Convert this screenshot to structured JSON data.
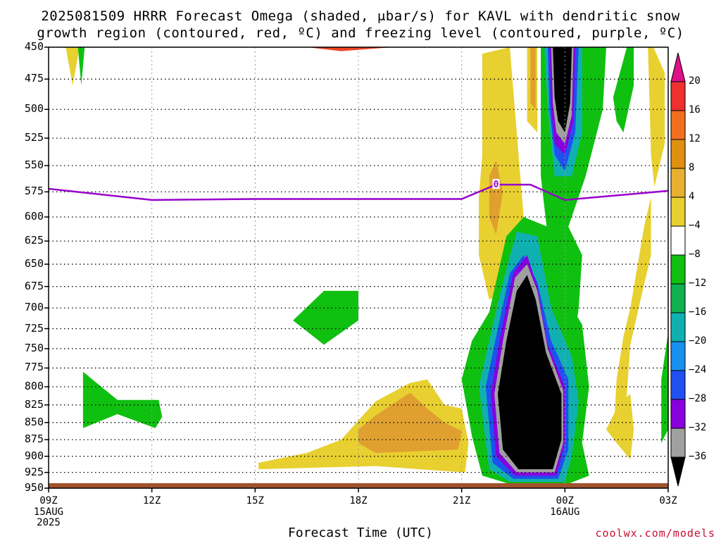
{
  "title_line1": "2025081509 HRRR Forecast Omega (shaded, μbar/s) for KAVL with dendritic snow",
  "title_line2": "growth region (contoured, red, ºC) and freezing level (contoured, purple, ºC)",
  "x_axis_title": "Forecast Time (UTC)",
  "credit": "coolwx.com/models",
  "freezing_label": "0",
  "chart_data": {
    "type": "heatmap",
    "x_ticks": [
      "09Z",
      "12Z",
      "15Z",
      "18Z",
      "21Z",
      "00Z",
      "03Z"
    ],
    "x_tick_hours": [
      9,
      12,
      15,
      18,
      21,
      24,
      27
    ],
    "x_sub_labels": [
      {
        "hour": 9,
        "lines": [
          "15AUG",
          "2025"
        ]
      },
      {
        "hour": 24,
        "lines": [
          "16AUG"
        ]
      }
    ],
    "y_ticks": [
      450,
      475,
      500,
      525,
      550,
      575,
      600,
      625,
      650,
      675,
      700,
      725,
      750,
      775,
      800,
      825,
      850,
      875,
      900,
      925,
      950
    ],
    "ylim": [
      950,
      450
    ],
    "xlim": [
      9,
      27
    ],
    "colorbar": {
      "labels": [
        "20",
        "16",
        "12",
        "8",
        "4",
        "−4",
        "−8",
        "−12",
        "−16",
        "−20",
        "−24",
        "−28",
        "−32",
        "−36"
      ],
      "colors": [
        "#dd1188",
        "#ee3030",
        "#f07020",
        "#e09010",
        "#e8b030",
        "#e8d030",
        "#ffffff",
        "#10c010",
        "#10b050",
        "#10b0b0",
        "#1890f0",
        "#2050f0",
        "#8800dd",
        "#a0a0a0",
        "#000000"
      ]
    },
    "freezing_level": {
      "color": "#9900cc",
      "hours": [
        9,
        12,
        15,
        18,
        21,
        22,
        23,
        24,
        27
      ],
      "pressure": [
        572,
        583,
        582,
        582,
        582,
        568,
        568,
        583,
        574
      ]
    },
    "regions": [
      {
        "name": "omega-4-to-8-left",
        "color": "#e8d030",
        "points": [
          [
            9.5,
            450
          ],
          [
            9.7,
            480
          ],
          [
            9.9,
            450
          ]
        ]
      },
      {
        "name": "omega-dendritic",
        "color": "#ee4422",
        "points": [
          [
            16.5,
            450
          ],
          [
            17.5,
            453
          ],
          [
            19,
            450
          ]
        ]
      },
      {
        "name": "omega-neg4-green-a",
        "color": "#10c010",
        "points": [
          [
            9.85,
            450
          ],
          [
            9.95,
            480
          ],
          [
            10.05,
            450
          ]
        ]
      },
      {
        "name": "omega-neg4-green-b",
        "color": "#10c010",
        "points": [
          [
            16.1,
            715
          ],
          [
            17.0,
            680
          ],
          [
            18.0,
            680
          ],
          [
            18.0,
            715
          ],
          [
            17.0,
            745
          ]
        ]
      },
      {
        "name": "omega-neg4-green-c",
        "color": "#10c010",
        "points": [
          [
            10.0,
            780
          ],
          [
            11.0,
            818
          ],
          [
            12.2,
            818
          ],
          [
            12.3,
            842
          ],
          [
            12.1,
            858
          ],
          [
            11.0,
            838
          ],
          [
            10.0,
            858
          ]
        ]
      },
      {
        "name": "omega-pos4-low",
        "color": "#e8d030",
        "points": [
          [
            15.1,
            910
          ],
          [
            16.5,
            895
          ],
          [
            17.5,
            875
          ],
          [
            18.5,
            820
          ],
          [
            19.5,
            795
          ],
          [
            20.0,
            790
          ],
          [
            20.5,
            825
          ],
          [
            21.0,
            830
          ],
          [
            21.2,
            880
          ],
          [
            21.1,
            925
          ],
          [
            18.5,
            915
          ],
          [
            15.1,
            920
          ]
        ]
      },
      {
        "name": "omega-pos8-low",
        "color": "#e0a030",
        "points": [
          [
            18.0,
            860
          ],
          [
            18.5,
            840
          ],
          [
            19.5,
            808
          ],
          [
            20.0,
            830
          ],
          [
            20.5,
            850
          ],
          [
            21.0,
            862
          ],
          [
            20.9,
            890
          ],
          [
            18.5,
            895
          ],
          [
            18.0,
            880
          ]
        ]
      },
      {
        "name": "omega-pos4-mid",
        "color": "#e8d030",
        "points": [
          [
            21.5,
            580
          ],
          [
            21.6,
            540
          ],
          [
            21.6,
            455
          ],
          [
            22.4,
            450
          ],
          [
            22.6,
            520
          ],
          [
            22.8,
            600
          ],
          [
            23.1,
            620
          ],
          [
            22.6,
            680
          ],
          [
            21.8,
            690
          ],
          [
            21.5,
            640
          ]
        ]
      },
      {
        "name": "omega-pos8-mid",
        "color": "#e0a030",
        "points": [
          [
            21.8,
            560
          ],
          [
            22.0,
            545
          ],
          [
            22.2,
            575
          ],
          [
            22.0,
            618
          ],
          [
            21.8,
            600
          ]
        ]
      },
      {
        "name": "omega-pos4-top",
        "color": "#e8d030",
        "points": [
          [
            22.9,
            450
          ],
          [
            23.2,
            450
          ],
          [
            23.2,
            520
          ],
          [
            22.9,
            510
          ]
        ]
      },
      {
        "name": "omega-pos8-top",
        "color": "#e0a030",
        "points": [
          [
            23.0,
            450
          ],
          [
            23.15,
            450
          ],
          [
            23.15,
            500
          ],
          [
            23.0,
            495
          ]
        ]
      },
      {
        "name": "omega-neg4-upper",
        "color": "#10c010",
        "points": [
          [
            23.3,
            450
          ],
          [
            25.2,
            450
          ],
          [
            25.1,
            500
          ],
          [
            24.6,
            560
          ],
          [
            24.1,
            610
          ],
          [
            24.5,
            640
          ],
          [
            24.4,
            700
          ],
          [
            24.2,
            760
          ],
          [
            23.7,
            680
          ],
          [
            23.5,
            620
          ],
          [
            23.3,
            560
          ],
          [
            23.3,
            500
          ]
        ]
      },
      {
        "name": "omega-neg12-upper",
        "color": "#10b0b0",
        "points": [
          [
            23.4,
            450
          ],
          [
            24.5,
            450
          ],
          [
            24.5,
            520
          ],
          [
            24.2,
            560
          ],
          [
            23.7,
            560
          ],
          [
            23.5,
            500
          ]
        ]
      },
      {
        "name": "omega-neg20-upper",
        "color": "#2050f0",
        "points": [
          [
            23.5,
            450
          ],
          [
            24.4,
            450
          ],
          [
            24.3,
            520
          ],
          [
            24.0,
            555
          ],
          [
            23.7,
            540
          ],
          [
            23.55,
            500
          ]
        ]
      },
      {
        "name": "omega-neg28-upper",
        "color": "#8800dd",
        "points": [
          [
            23.55,
            450
          ],
          [
            24.3,
            450
          ],
          [
            24.25,
            510
          ],
          [
            24.0,
            540
          ],
          [
            23.7,
            530
          ],
          [
            23.6,
            500
          ]
        ]
      },
      {
        "name": "omega-neg32-upper",
        "color": "#a0a0a0",
        "points": [
          [
            23.6,
            450
          ],
          [
            24.25,
            450
          ],
          [
            24.2,
            505
          ],
          [
            24.0,
            530
          ],
          [
            23.75,
            520
          ],
          [
            23.65,
            495
          ]
        ]
      },
      {
        "name": "omega-neg36-upper",
        "color": "#000000",
        "points": [
          [
            23.65,
            450
          ],
          [
            24.2,
            450
          ],
          [
            24.15,
            495
          ],
          [
            24.0,
            520
          ],
          [
            23.8,
            510
          ],
          [
            23.7,
            490
          ]
        ]
      },
      {
        "name": "omega-neg4-right-top",
        "color": "#10c010",
        "points": [
          [
            25.4,
            490
          ],
          [
            25.8,
            450
          ],
          [
            26.0,
            450
          ],
          [
            26.0,
            480
          ],
          [
            25.7,
            520
          ],
          [
            25.5,
            510
          ]
        ]
      },
      {
        "name": "omega-neg4-lower",
        "color": "#10c010",
        "points": [
          [
            21.0,
            790
          ],
          [
            21.3,
            740
          ],
          [
            21.8,
            705
          ],
          [
            22.3,
            620
          ],
          [
            22.8,
            600
          ],
          [
            23.5,
            610
          ],
          [
            23.9,
            680
          ],
          [
            24.5,
            720
          ],
          [
            24.7,
            800
          ],
          [
            24.5,
            880
          ],
          [
            24.7,
            930
          ],
          [
            24.0,
            945
          ],
          [
            22.5,
            945
          ],
          [
            21.6,
            930
          ],
          [
            21.3,
            870
          ]
        ]
      },
      {
        "name": "omega-neg12-lower",
        "color": "#10b0b0",
        "points": [
          [
            21.5,
            800
          ],
          [
            21.8,
            740
          ],
          [
            22.2,
            670
          ],
          [
            22.6,
            615
          ],
          [
            23.2,
            620
          ],
          [
            23.6,
            700
          ],
          [
            24.2,
            760
          ],
          [
            24.4,
            820
          ],
          [
            24.2,
            900
          ],
          [
            24.0,
            940
          ],
          [
            22.4,
            940
          ],
          [
            21.8,
            920
          ]
        ]
      },
      {
        "name": "omega-neg20-lower",
        "color": "#2050f0",
        "points": [
          [
            21.7,
            800
          ],
          [
            22.0,
            735
          ],
          [
            22.4,
            660
          ],
          [
            22.8,
            640
          ],
          [
            23.2,
            670
          ],
          [
            23.6,
            740
          ],
          [
            24.1,
            790
          ],
          [
            24.1,
            890
          ],
          [
            23.8,
            935
          ],
          [
            22.5,
            935
          ],
          [
            21.9,
            910
          ]
        ]
      },
      {
        "name": "omega-neg28-lower",
        "color": "#8800dd",
        "points": [
          [
            21.85,
            810
          ],
          [
            22.1,
            740
          ],
          [
            22.5,
            660
          ],
          [
            22.9,
            640
          ],
          [
            23.2,
            675
          ],
          [
            23.5,
            745
          ],
          [
            24.0,
            800
          ],
          [
            24.0,
            880
          ],
          [
            23.75,
            930
          ],
          [
            22.55,
            930
          ],
          [
            22.0,
            900
          ]
        ]
      },
      {
        "name": "omega-neg32-lower",
        "color": "#a0a0a0",
        "points": [
          [
            21.95,
            810
          ],
          [
            22.2,
            740
          ],
          [
            22.55,
            665
          ],
          [
            22.9,
            650
          ],
          [
            23.2,
            680
          ],
          [
            23.5,
            750
          ],
          [
            23.95,
            805
          ],
          [
            23.95,
            880
          ],
          [
            23.7,
            925
          ],
          [
            22.6,
            925
          ],
          [
            22.1,
            895
          ]
        ]
      },
      {
        "name": "omega-neg36-lower",
        "color": "#000000",
        "points": [
          [
            22.05,
            810
          ],
          [
            22.3,
            740
          ],
          [
            22.6,
            680
          ],
          [
            22.9,
            662
          ],
          [
            23.15,
            690
          ],
          [
            23.45,
            755
          ],
          [
            23.9,
            810
          ],
          [
            23.9,
            875
          ],
          [
            23.65,
            920
          ],
          [
            22.65,
            920
          ],
          [
            22.2,
            890
          ]
        ]
      },
      {
        "name": "omega-pos4-right",
        "color": "#e8d030",
        "points": [
          [
            25.5,
            790
          ],
          [
            25.7,
            735
          ],
          [
            25.9,
            700
          ],
          [
            26.3,
            610
          ],
          [
            26.5,
            580
          ],
          [
            26.5,
            640
          ],
          [
            26.2,
            690
          ],
          [
            25.9,
            745
          ],
          [
            25.8,
            810
          ],
          [
            25.6,
            850
          ],
          [
            25.4,
            880
          ]
        ]
      },
      {
        "name": "omega-pos4-right-low",
        "color": "#e8d030",
        "points": [
          [
            25.2,
            860
          ],
          [
            25.6,
            820
          ],
          [
            25.9,
            810
          ],
          [
            26.0,
            860
          ],
          [
            25.9,
            905
          ],
          [
            25.5,
            880
          ]
        ]
      },
      {
        "name": "omega-pos4-far-right",
        "color": "#e8d030",
        "points": [
          [
            26.4,
            440
          ],
          [
            26.9,
            470
          ],
          [
            26.9,
            530
          ],
          [
            26.6,
            570
          ],
          [
            26.5,
            540
          ]
        ]
      },
      {
        "name": "omega-neg4-far-right",
        "color": "#10c010",
        "points": [
          [
            26.8,
            790
          ],
          [
            27.0,
            730
          ],
          [
            27.0,
            860
          ],
          [
            26.8,
            880
          ]
        ]
      },
      {
        "name": "surface",
        "color": "#a0522d",
        "points": [
          [
            9,
            942
          ],
          [
            27,
            942
          ],
          [
            27,
            950
          ],
          [
            9,
            950
          ]
        ]
      }
    ]
  }
}
